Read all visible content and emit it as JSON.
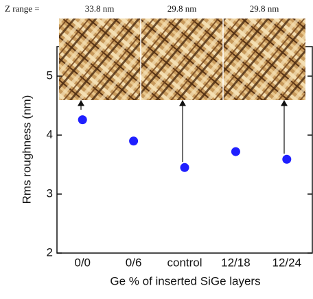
{
  "chart_data": {
    "type": "scatter",
    "x_label": "Ge % of inserted SiGe layers",
    "y_label": "Rms roughness (nm)",
    "categories": [
      "0/0",
      "0/6",
      "control",
      "12/18",
      "12/24"
    ],
    "values": [
      4.26,
      3.9,
      3.45,
      3.72,
      3.59
    ],
    "color": "#1f1fff",
    "ylim": [
      2,
      5.5
    ],
    "yticks": [
      2,
      3,
      4,
      5
    ],
    "z_range_label": "Z range =",
    "insets": [
      {
        "z_range": "33.8 nm"
      },
      {
        "z_range": "29.8 nm"
      },
      {
        "z_range": "29.8 nm"
      }
    ]
  }
}
